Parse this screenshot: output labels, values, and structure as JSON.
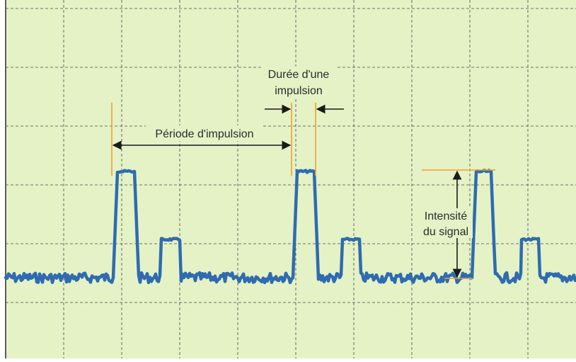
{
  "labels": {
    "pulse_period": "Période d'impulsion",
    "pulse_duration_line1": "Durée d'une",
    "pulse_duration_line2": "impulsion",
    "signal_intensity_line1": "Intensité",
    "signal_intensity_line2": "du signal"
  },
  "colors": {
    "screen_background": "#e4f2c6",
    "grid": "#4a4a4a",
    "signal_trace": "#2f6bb0",
    "marker_lines": "#f0a030",
    "arrows": "#1a1a1a"
  }
}
